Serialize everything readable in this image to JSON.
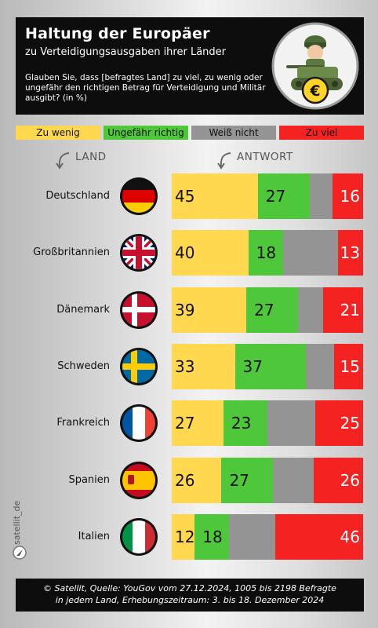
{
  "header": {
    "title": "Haltung der Europäer",
    "subtitle": "zu Verteidigungsausgaben ihrer Länder",
    "question": "Glauben Sie, dass [befragtes Land] zu viel, zu wenig oder ungefähr den richtigen Betrag für Verteidigung und Militär ausgibt? (in %)",
    "coin_symbol": "€"
  },
  "column_heads": {
    "land": "LAND",
    "antwort": "ANTWORT"
  },
  "brand": "satellit_de",
  "footer": {
    "line1": "© Satellit, Quelle: YouGov vom 27.12.2024, 1005 bis 2198 Befragte",
    "line2": "in jedem Land, Erhebungszeitraum: 3. bis 18. Dezember 2024"
  },
  "chart_data": {
    "type": "bar",
    "orientation": "horizontal",
    "stacked": true,
    "unit": "%",
    "categories": [
      "Deutschland",
      "Großbritannien",
      "Dänemark",
      "Schweden",
      "Frankreich",
      "Spanien",
      "Italien"
    ],
    "series": [
      {
        "name": "Zu wenig",
        "color": "#ffd84f",
        "values": [
          45,
          40,
          39,
          33,
          27,
          26,
          12
        ],
        "label": true
      },
      {
        "name": "Ungefähr richtig",
        "color": "#4fc73b",
        "values": [
          27,
          18,
          27,
          37,
          23,
          27,
          18
        ],
        "label": true
      },
      {
        "name": "Weiß nicht",
        "color": "#949494",
        "values": [
          12,
          29,
          13,
          15,
          25,
          21,
          24
        ],
        "label": false
      },
      {
        "name": "Zu viel",
        "color": "#f52222",
        "values": [
          16,
          13,
          21,
          15,
          25,
          26,
          46
        ],
        "label": true
      }
    ],
    "flags": [
      "de-flag",
      "gb-flag",
      "dk-flag",
      "se-flag",
      "fr-flag",
      "es-flag",
      "it-flag"
    ],
    "legend_position": "top",
    "xlim": [
      0,
      100
    ],
    "grid": false
  }
}
